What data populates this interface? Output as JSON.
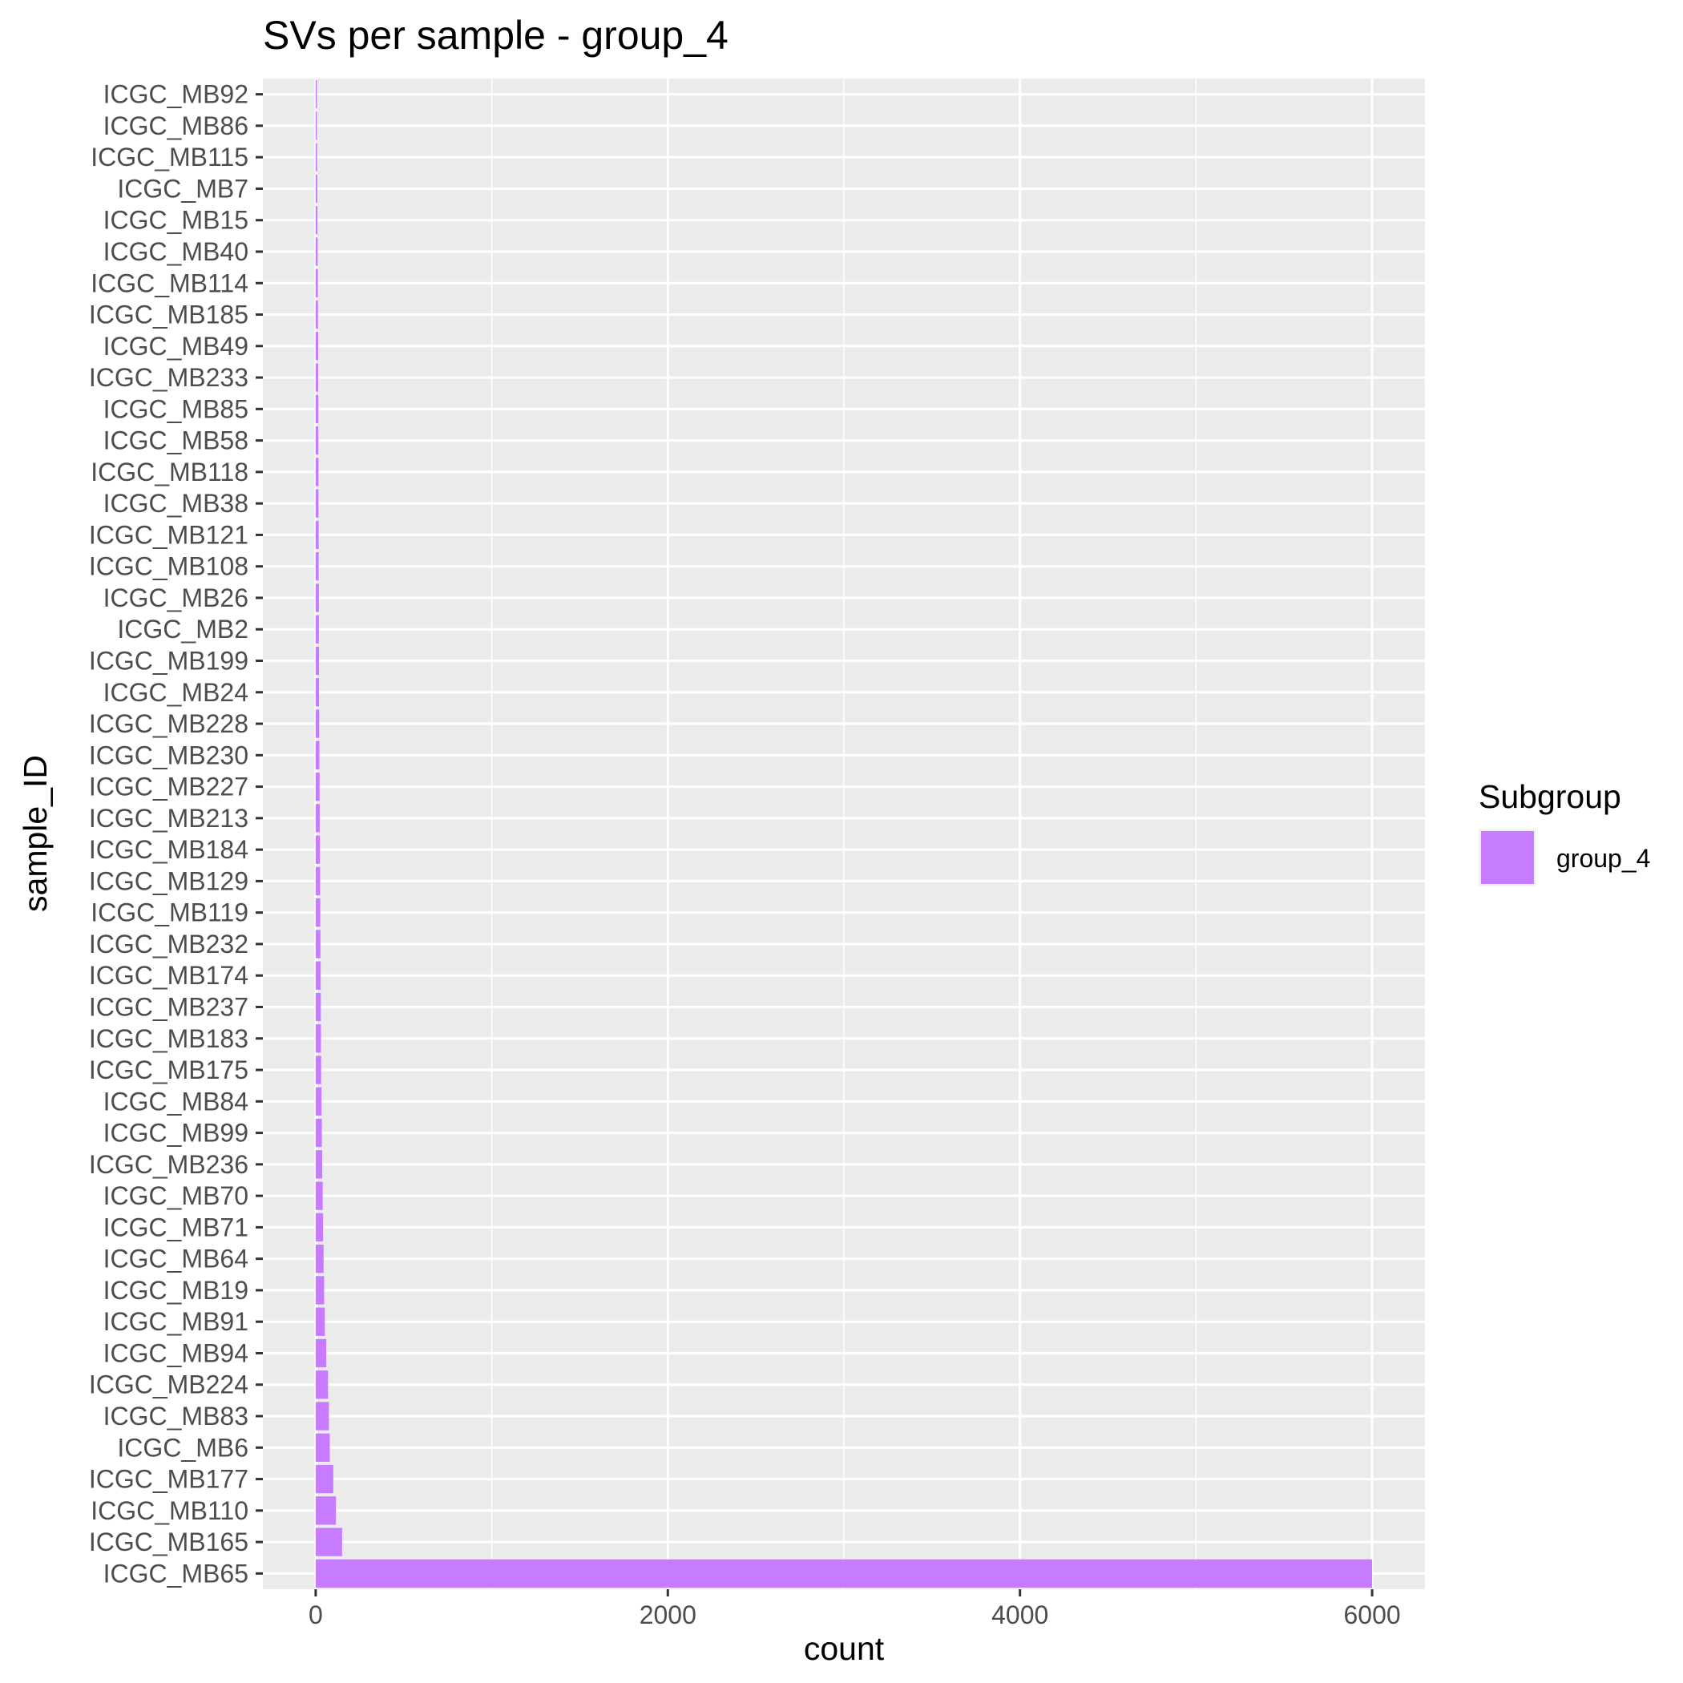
{
  "chart_data": {
    "type": "bar",
    "orientation": "horizontal",
    "title": "SVs per sample - group_4",
    "xlabel": "count",
    "ylabel": "sample_ID",
    "xlim": [
      -300,
      6300
    ],
    "xticks": [
      0,
      2000,
      4000,
      6000
    ],
    "grid": true,
    "legend": {
      "title": "Subgroup",
      "position": "right",
      "entries": [
        {
          "label": "group_4",
          "color": "#c77cff"
        }
      ]
    },
    "bar_color": "#c77cff",
    "categories": [
      "ICGC_MB92",
      "ICGC_MB86",
      "ICGC_MB115",
      "ICGC_MB7",
      "ICGC_MB15",
      "ICGC_MB40",
      "ICGC_MB114",
      "ICGC_MB185",
      "ICGC_MB49",
      "ICGC_MB233",
      "ICGC_MB85",
      "ICGC_MB58",
      "ICGC_MB118",
      "ICGC_MB38",
      "ICGC_MB121",
      "ICGC_MB108",
      "ICGC_MB26",
      "ICGC_MB2",
      "ICGC_MB199",
      "ICGC_MB24",
      "ICGC_MB228",
      "ICGC_MB230",
      "ICGC_MB227",
      "ICGC_MB213",
      "ICGC_MB184",
      "ICGC_MB129",
      "ICGC_MB119",
      "ICGC_MB232",
      "ICGC_MB174",
      "ICGC_MB237",
      "ICGC_MB183",
      "ICGC_MB175",
      "ICGC_MB84",
      "ICGC_MB99",
      "ICGC_MB236",
      "ICGC_MB70",
      "ICGC_MB71",
      "ICGC_MB64",
      "ICGC_MB19",
      "ICGC_MB91",
      "ICGC_MB94",
      "ICGC_MB224",
      "ICGC_MB83",
      "ICGC_MB6",
      "ICGC_MB177",
      "ICGC_MB110",
      "ICGC_MB165",
      "ICGC_MB65"
    ],
    "values": [
      2,
      6,
      8,
      9,
      10,
      11,
      12,
      13,
      14,
      14,
      15,
      15,
      16,
      16,
      17,
      17,
      18,
      18,
      19,
      19,
      20,
      21,
      22,
      23,
      24,
      25,
      26,
      27,
      28,
      29,
      30,
      31,
      33,
      35,
      37,
      40,
      42,
      45,
      48,
      52,
      60,
      70,
      75,
      80,
      100,
      115,
      150,
      6000
    ]
  }
}
